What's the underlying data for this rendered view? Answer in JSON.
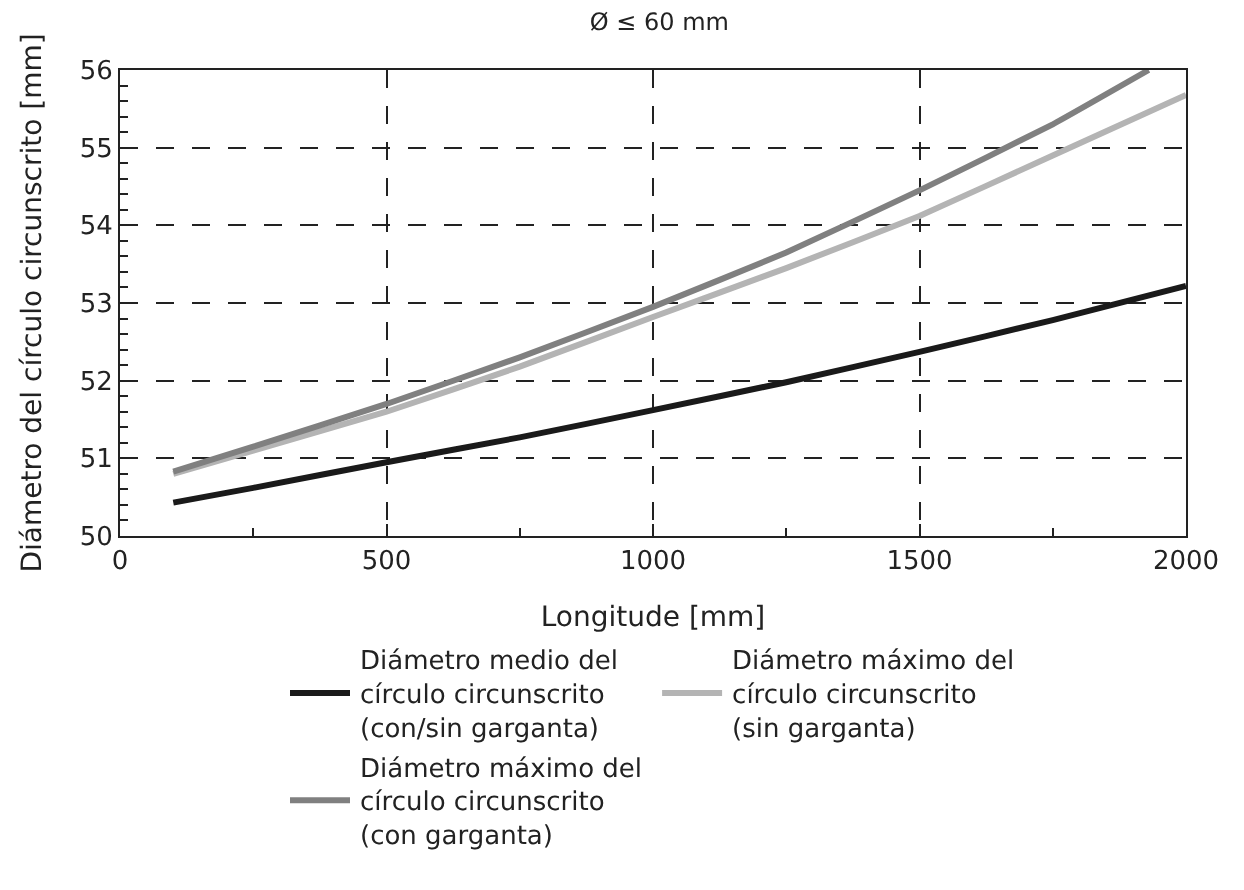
{
  "chart_data": {
    "type": "line",
    "title": "Ø ≤ 60 mm",
    "xlabel": "Longitude [mm]",
    "ylabel": "Diámetro del círculo circunscrito [mm]",
    "xlim": [
      0,
      2000
    ],
    "xticks": [
      0,
      500,
      1000,
      1500,
      2000
    ],
    "ylim": [
      50,
      56
    ],
    "yticks": [
      50,
      51,
      52,
      53,
      54,
      55,
      56
    ],
    "grid": true,
    "legend": "bottom",
    "line_style": "solid",
    "series": [
      {
        "name": "Diámetro medio del círculo circunscrito (con/sin garganta)",
        "color": "#1a1a1a",
        "x": [
          100,
          250,
          500,
          750,
          1000,
          1250,
          1500,
          1750,
          2000
        ],
        "values": [
          50.43,
          50.62,
          50.95,
          51.27,
          51.62,
          51.98,
          52.37,
          52.78,
          53.22
        ]
      },
      {
        "name": "Diámetro máximo del círculo circunscrito (sin garganta)",
        "color": "#b4b4b4",
        "x": [
          100,
          250,
          500,
          750,
          1000,
          1250,
          1500,
          1750,
          2000
        ],
        "values": [
          50.8,
          51.1,
          51.6,
          52.18,
          52.82,
          53.45,
          54.12,
          54.9,
          55.68
        ]
      },
      {
        "name": "Diámetro máximo del círculo circunscrito (con garganta)",
        "color": "#808080",
        "x": [
          100,
          250,
          500,
          750,
          1000,
          1250,
          1500,
          1750,
          1930
        ],
        "values": [
          50.83,
          51.15,
          51.7,
          52.3,
          52.95,
          53.65,
          54.45,
          55.3,
          56.0
        ]
      }
    ]
  }
}
